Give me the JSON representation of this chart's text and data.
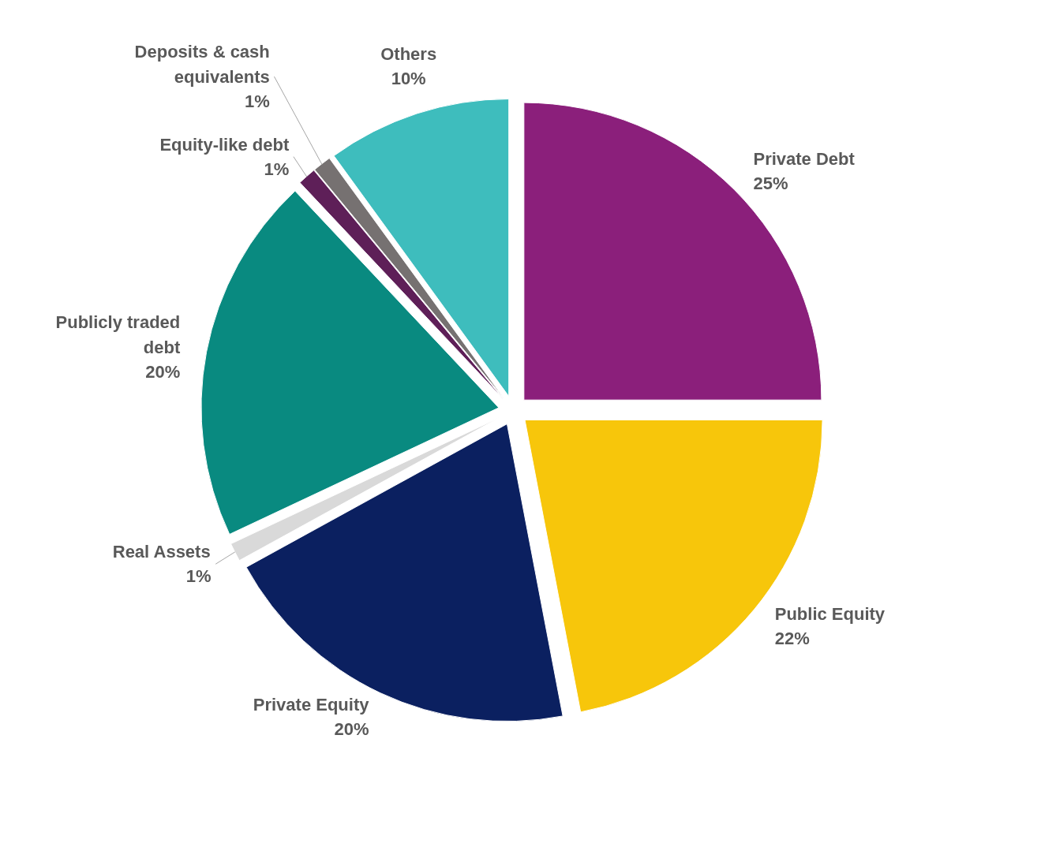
{
  "chart_data": {
    "type": "pie",
    "categories": [
      "Private Debt",
      "Public Equity",
      "Private Equity",
      "Real Assets",
      "Publicly traded debt",
      "Equity-like debt",
      "Deposits & cash equivalents",
      "Others"
    ],
    "values": [
      25,
      22,
      20,
      1,
      20,
      1,
      1,
      10
    ],
    "colors": [
      "#8b1f7b",
      "#f7c60b",
      "#0b2060",
      "#d9d9d9",
      "#098a80",
      "#5e1f58",
      "#767171",
      "#3ebdbd"
    ],
    "value_labels": [
      "25%",
      "22%",
      "20%",
      "1%",
      "20%",
      "1%",
      "1%",
      "10%"
    ]
  }
}
